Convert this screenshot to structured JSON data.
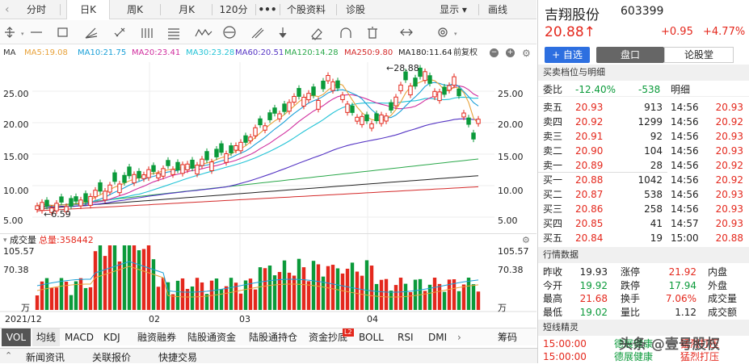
{
  "tabs": [
    {
      "label": "分时"
    },
    {
      "label": "日K"
    },
    {
      "label": "周K"
    },
    {
      "label": "月K"
    },
    {
      "label": "120分"
    },
    {
      "label": "•••"
    },
    {
      "label": "个股资料"
    },
    {
      "label": "诊股"
    },
    {
      "label": "显示 ▾"
    },
    {
      "label": "画线"
    }
  ],
  "ma_legend": {
    "mode": "MA",
    "ma5": "MA5:19.08",
    "ma10": "MA10:21.75",
    "ma20": "MA20:23.41",
    "ma30": "MA30:23.28",
    "ma60": "MA60:20.51",
    "ma120": "MA120:14.28",
    "ma250": "MA250:9.80",
    "ma180": "MA180:11.64",
    "adjust": "前复权"
  },
  "colors": {
    "ma5": "#e8a23a",
    "ma10": "#1aa0d8",
    "ma20": "#d02e9e",
    "ma30": "#23c3d6",
    "ma60": "#5535c4",
    "ma120": "#2aa84a",
    "ma250": "#d42a2a",
    "ma180": "#222222",
    "up": "#e4281d",
    "down": "#0b9a3a"
  },
  "price_axis": [
    "25.00",
    "20.00",
    "15.00",
    "10.00",
    "5.00"
  ],
  "annotations": {
    "high": "28.88",
    "low": "6.59"
  },
  "volume": {
    "label": "成交量",
    "total": "总量:358442",
    "axis_top": "105.57",
    "axis_mid": "70.38",
    "unit": "万"
  },
  "dates": {
    "start": "2021/12",
    "m2": "02",
    "m3": "03",
    "m4": "04"
  },
  "indicators": [
    "VOL",
    "均线",
    "MACD",
    "KDJ",
    "融资融券",
    "陆股通资金",
    "陆股通持仓",
    "资金抄底",
    "BOLL",
    "RSI",
    "DMI"
  ],
  "indicator_badge": "L2",
  "indicator_more": "筹码",
  "bottom_tabs": [
    "新闻资讯",
    "关联报价",
    "快捷交易"
  ],
  "stock": {
    "name": "吉翔股份",
    "code": "603399",
    "price": "20.88",
    "arrow": "↑",
    "change": "+0.95",
    "pct": "+4.77%"
  },
  "buttons": {
    "add": "+ 自选",
    "pankou": "盘口",
    "luntang": "论股堂"
  },
  "orderbook": {
    "title": "买卖档位与明细",
    "ratio_label": "委比",
    "ratio": "-12.40%",
    "diff": "-538",
    "detail": "明细",
    "asks": [
      {
        "label": "卖五",
        "price": "20.93",
        "vol": "913"
      },
      {
        "label": "卖四",
        "price": "20.92",
        "vol": "1299"
      },
      {
        "label": "卖三",
        "price": "20.91",
        "vol": "92"
      },
      {
        "label": "卖二",
        "price": "20.90",
        "vol": "104"
      },
      {
        "label": "卖一",
        "price": "20.89",
        "vol": "28"
      }
    ],
    "bids": [
      {
        "label": "买一",
        "price": "20.88",
        "vol": "1042"
      },
      {
        "label": "买二",
        "price": "20.87",
        "vol": "538"
      },
      {
        "label": "买三",
        "price": "20.86",
        "vol": "258"
      },
      {
        "label": "买四",
        "price": "20.85",
        "vol": "41"
      },
      {
        "label": "买五",
        "price": "20.84",
        "vol": "19"
      }
    ],
    "ticks": [
      {
        "time": "14:56",
        "price": "20.93"
      },
      {
        "time": "14:56",
        "price": "20.92"
      },
      {
        "time": "14:56",
        "price": "20.93"
      },
      {
        "time": "14:56",
        "price": "20.93"
      },
      {
        "time": "14:56",
        "price": "20.92"
      },
      {
        "time": "14:56",
        "price": "20.92"
      },
      {
        "time": "14:56",
        "price": "20.93"
      },
      {
        "time": "14:56",
        "price": "20.93"
      },
      {
        "time": "14:57",
        "price": "20.93"
      },
      {
        "time": "15:00",
        "price": "20.88"
      }
    ]
  },
  "quote": {
    "title": "行情数据",
    "rows": [
      {
        "l1": "昨收",
        "v1": "19.93",
        "l2": "涨停",
        "v2": "21.92",
        "l3": "内盘"
      },
      {
        "l1": "今开",
        "v1": "19.92",
        "l2": "跌停",
        "v2": "17.94",
        "l3": "外盘"
      },
      {
        "l1": "最高",
        "v1": "21.68",
        "l2": "换手",
        "v2": "7.06%",
        "l3": "成交量"
      },
      {
        "l1": "最低",
        "v1": "19.02",
        "l2": "量比",
        "v2": "1.12",
        "l3": "成交额"
      }
    ]
  },
  "sprite": {
    "title": "短线精灵",
    "items": [
      {
        "time": "15:00:00",
        "name": "德展健康",
        "signal": "猛烈打压"
      },
      {
        "time": "15:00:00",
        "name": "德展健康",
        "signal": "猛烈打压"
      }
    ]
  },
  "watermark": "头条 @壹号股权"
}
